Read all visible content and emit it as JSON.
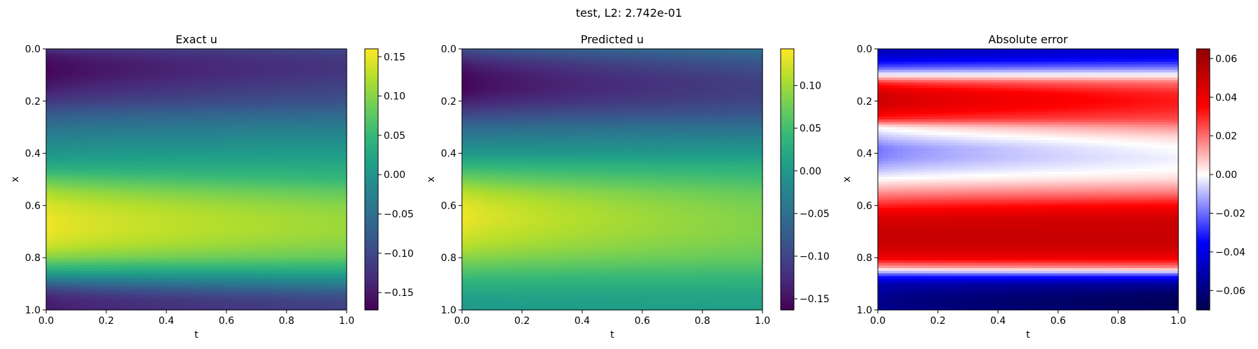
{
  "figure": {
    "suptitle": "test, L2: 2.742e-01"
  },
  "chart_data": [
    {
      "type": "heatmap",
      "title": "Exact u",
      "xlabel": "t",
      "ylabel": "x",
      "xlim": [
        0.0,
        1.0
      ],
      "ylim": [
        1.0,
        0.0
      ],
      "xticks": [
        "0.0",
        "0.2",
        "0.4",
        "0.6",
        "0.8",
        "1.0"
      ],
      "yticks": [
        "0.0",
        "0.2",
        "0.4",
        "0.6",
        "0.8",
        "1.0"
      ],
      "colormap": "viridis",
      "colorbar": {
        "range": [
          -0.172,
          0.16
        ],
        "ticks": [
          -0.15,
          -0.1,
          -0.05,
          0.0,
          0.05,
          0.1,
          0.15
        ],
        "tick_labels": [
          "−0.15",
          "−0.10",
          "−0.05",
          "0.00",
          "0.05",
          "0.10",
          "0.15"
        ]
      },
      "profile_x": [
        0.0,
        0.02,
        0.05,
        0.08,
        0.1,
        0.15,
        0.2,
        0.25,
        0.3,
        0.35,
        0.4,
        0.45,
        0.5,
        0.55,
        0.6,
        0.65,
        0.7,
        0.75,
        0.8,
        0.85,
        0.9,
        0.93,
        0.96,
        1.0
      ],
      "profile_u_t0": [
        -0.12,
        -0.15,
        -0.165,
        -0.17,
        -0.168,
        -0.15,
        -0.12,
        -0.08,
        -0.05,
        -0.02,
        0.0,
        0.03,
        0.08,
        0.12,
        0.145,
        0.155,
        0.155,
        0.14,
        0.1,
        0.03,
        -0.07,
        -0.12,
        -0.145,
        -0.15
      ],
      "profile_u_t1": [
        -0.1,
        -0.11,
        -0.12,
        -0.12,
        -0.118,
        -0.105,
        -0.09,
        -0.06,
        -0.03,
        -0.01,
        0.01,
        0.03,
        0.05,
        0.08,
        0.1,
        0.11,
        0.11,
        0.1,
        0.08,
        0.03,
        -0.03,
        -0.07,
        -0.1,
        -0.11
      ]
    },
    {
      "type": "heatmap",
      "title": "Predicted u",
      "xlabel": "t",
      "ylabel": "x",
      "xlim": [
        0.0,
        1.0
      ],
      "ylim": [
        1.0,
        0.0
      ],
      "xticks": [
        "0.0",
        "0.2",
        "0.4",
        "0.6",
        "0.8",
        "1.0"
      ],
      "yticks": [
        "0.0",
        "0.2",
        "0.4",
        "0.6",
        "0.8",
        "1.0"
      ],
      "colormap": "viridis",
      "colorbar": {
        "range": [
          -0.163,
          0.143
        ],
        "ticks": [
          -0.15,
          -0.1,
          -0.05,
          0.0,
          0.05,
          0.1
        ],
        "tick_labels": [
          "−0.15",
          "−0.10",
          "−0.05",
          "0.00",
          "0.05",
          "0.10"
        ]
      },
      "profile_x": [
        0.0,
        0.03,
        0.06,
        0.1,
        0.13,
        0.16,
        0.2,
        0.25,
        0.3,
        0.35,
        0.4,
        0.45,
        0.5,
        0.55,
        0.6,
        0.65,
        0.7,
        0.75,
        0.8,
        0.85,
        0.9,
        0.95,
        1.0
      ],
      "profile_u_t0": [
        -0.09,
        -0.12,
        -0.145,
        -0.16,
        -0.163,
        -0.16,
        -0.14,
        -0.1,
        -0.06,
        -0.03,
        0.0,
        0.04,
        0.08,
        0.115,
        0.135,
        0.14,
        0.13,
        0.115,
        0.09,
        0.06,
        0.03,
        0.01,
        0.0
      ],
      "profile_u_t1": [
        -0.05,
        -0.07,
        -0.085,
        -0.1,
        -0.105,
        -0.105,
        -0.1,
        -0.08,
        -0.05,
        -0.02,
        0.0,
        0.03,
        0.05,
        0.07,
        0.08,
        0.085,
        0.085,
        0.08,
        0.07,
        0.05,
        0.03,
        0.015,
        0.01
      ]
    },
    {
      "type": "heatmap",
      "title": "Absolute error",
      "xlabel": "t",
      "ylabel": "x",
      "xlim": [
        0.0,
        1.0
      ],
      "ylim": [
        1.0,
        0.0
      ],
      "xticks": [
        "0.0",
        "0.2",
        "0.4",
        "0.6",
        "0.8",
        "1.0"
      ],
      "yticks": [
        "0.0",
        "0.2",
        "0.4",
        "0.6",
        "0.8",
        "1.0"
      ],
      "colormap": "seismic",
      "colorbar": {
        "range": [
          -0.07,
          0.065
        ],
        "ticks": [
          -0.06,
          -0.04,
          -0.02,
          0.0,
          0.02,
          0.04,
          0.06
        ],
        "tick_labels": [
          "−0.06",
          "−0.04",
          "−0.02",
          "0.00",
          "0.02",
          "0.04",
          "0.06"
        ]
      },
      "profile_x": [
        0.0,
        0.03,
        0.07,
        0.1,
        0.13,
        0.17,
        0.2,
        0.23,
        0.27,
        0.3,
        0.34,
        0.38,
        0.42,
        0.46,
        0.5,
        0.55,
        0.6,
        0.65,
        0.7,
        0.75,
        0.8,
        0.84,
        0.87,
        0.9,
        0.94,
        0.97,
        1.0
      ],
      "profile_e_t0": [
        -0.05,
        -0.045,
        -0.025,
        0.0,
        0.03,
        0.048,
        0.05,
        0.045,
        0.03,
        0.0,
        -0.01,
        -0.02,
        -0.018,
        -0.01,
        0.0,
        0.015,
        0.03,
        0.045,
        0.05,
        0.05,
        0.04,
        0.01,
        -0.03,
        -0.05,
        -0.055,
        -0.058,
        -0.055
      ],
      "profile_e_t1": [
        -0.045,
        -0.04,
        -0.02,
        0.0,
        0.02,
        0.03,
        0.032,
        0.03,
        0.025,
        0.015,
        0.005,
        0.0,
        -0.002,
        0.0,
        0.005,
        0.018,
        0.035,
        0.048,
        0.05,
        0.05,
        0.04,
        0.015,
        -0.03,
        -0.055,
        -0.065,
        -0.068,
        -0.065
      ]
    }
  ]
}
